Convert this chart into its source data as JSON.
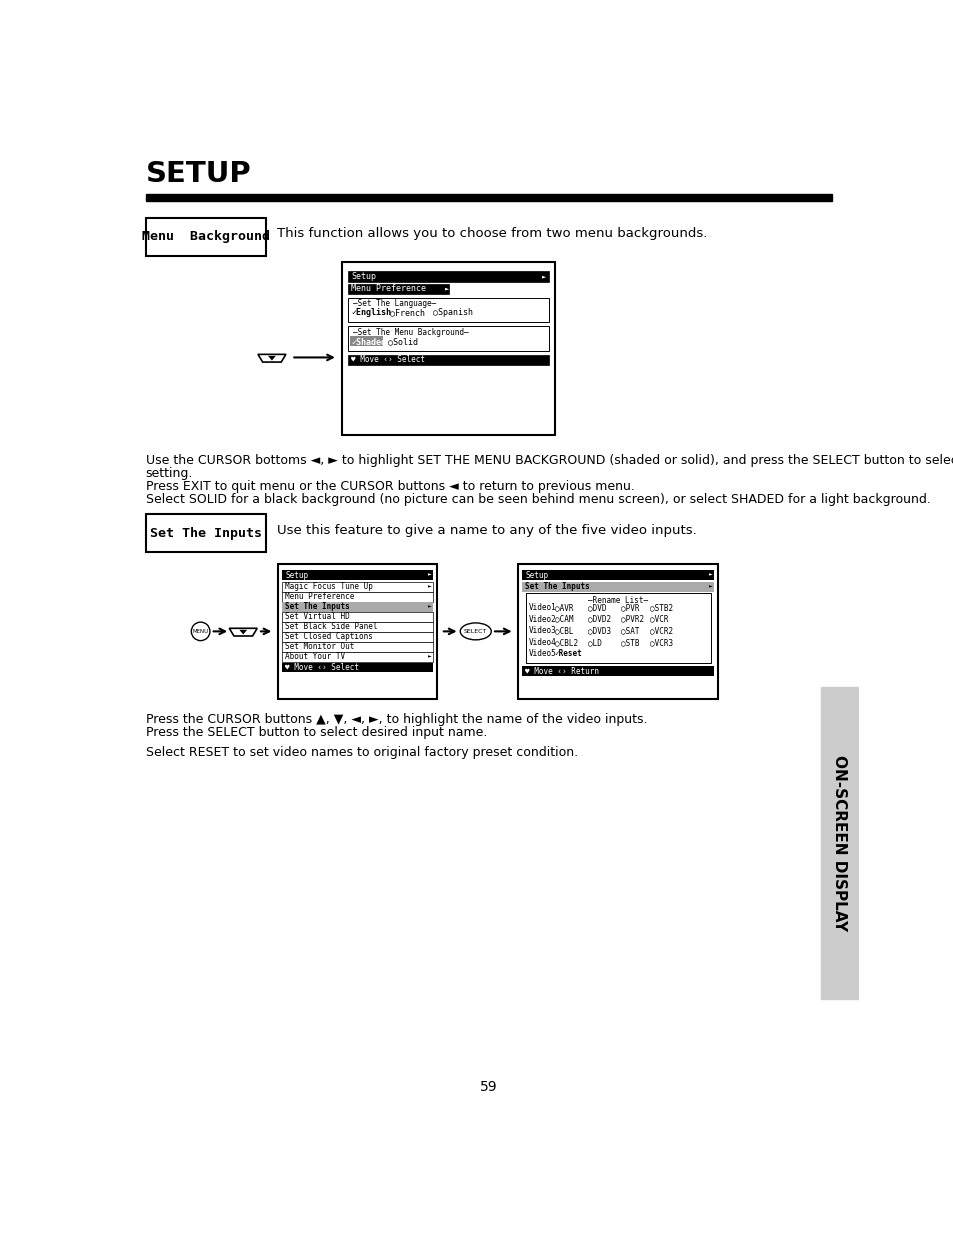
{
  "title": "SETUP",
  "bg_color": "#ffffff",
  "sidebar_color": "#cccccc",
  "sidebar_text": "ON-SCREEN DISPLAY",
  "page_number": "59",
  "section1_label": "Menu  Background",
  "section1_desc": "This function allows you to choose from two menu backgrounds.",
  "section1_body_line1": "Use the CURSOR bottoms ◄, ► to highlight SET THE MENU BACKGROUND (shaded or solid), and press the SELECT button to select",
  "section1_body_line2": "setting.",
  "section1_body_line3": "Press EXIT to quit menu or the CURSOR buttons ◄ to return to previous menu.",
  "section1_body_line4": "Select SOLID for a black background (no picture can be seen behind menu screen), or select SHADED for a light background.",
  "section2_label": "Set The Inputs",
  "section2_desc": "Use this feature to give a name to any of the five video inputs.",
  "section2_body_line1": "Press the CURSOR buttons ▲, ▼, ◄, ►, to highlight the name of the video inputs.",
  "section2_body_line2": "Press the SELECT button to select desired input name.",
  "section2_body_line3": "Select RESET to set video names to original factory preset condition."
}
